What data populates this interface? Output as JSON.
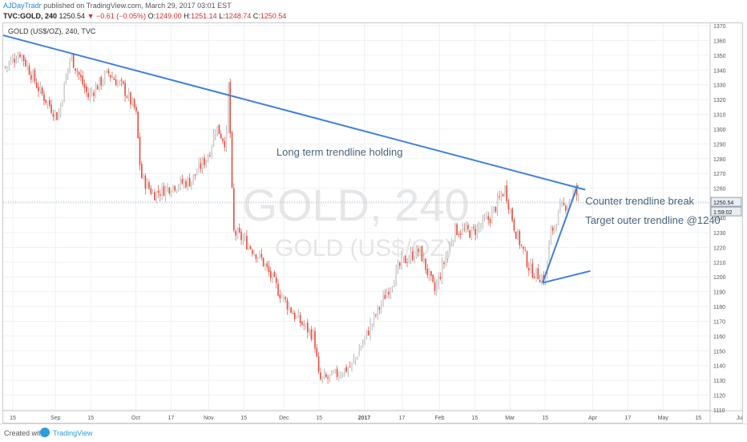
{
  "header": {
    "author": "AJDayTradr",
    "publish_text": "published on TradingView.com, March 29, 2017 03:01 EST",
    "symbol_line": "TVC:GOLD, 240",
    "last": "1250.54",
    "change": "▼ −0.61 (−0.05%)",
    "ohlc": [
      {
        "k": "O:",
        "v": "1249.00"
      },
      {
        "k": "H:",
        "v": "1251.14"
      },
      {
        "k": "L:",
        "v": "1248.74"
      },
      {
        "k": "C:",
        "v": "1250.54"
      }
    ]
  },
  "footer": {
    "created_with": "Created with",
    "brand": "TradingView"
  },
  "colors": {
    "up": "#cfcfcf",
    "down": "#e74c3c",
    "trendline": "#3f7fdc",
    "annotation_text": "#4a6479",
    "watermark": "#e6e6e6"
  },
  "chart_data": {
    "type": "candlestick",
    "chart_label": "GOLD (US$/OZ), 240, TVC",
    "watermark_symbol": "GOLD, 240",
    "watermark_name": "GOLD (US$/OZ)",
    "ylim": [
      1110,
      1370
    ],
    "y_ticks": [
      1110,
      1120,
      1130,
      1140,
      1150,
      1160,
      1170,
      1180,
      1190,
      1200,
      1210,
      1220,
      1230,
      1240,
      1250,
      1260,
      1270,
      1280,
      1290,
      1300,
      1310,
      1320,
      1330,
      1340,
      1350,
      1360,
      1370
    ],
    "x_ticks": [
      "15",
      "Sep",
      "15",
      "Oct",
      "17",
      "Nov",
      "15",
      "Dec",
      "15",
      "2017",
      "17",
      "Feb",
      "15",
      "Mar",
      "15",
      "Apr",
      "17",
      "May",
      "15",
      "Jun"
    ],
    "last_price_label": "1250.54",
    "countdown_label": "1:59:02",
    "price_path": [
      {
        "date": "2016-08-12",
        "price": 1342
      },
      {
        "date": "2016-08-18",
        "price": 1352
      },
      {
        "date": "2016-08-26",
        "price": 1325
      },
      {
        "date": "2016-09-02",
        "price": 1308
      },
      {
        "date": "2016-09-07",
        "price": 1350
      },
      {
        "date": "2016-09-14",
        "price": 1322
      },
      {
        "date": "2016-09-22",
        "price": 1338
      },
      {
        "date": "2016-09-28",
        "price": 1328
      },
      {
        "date": "2016-10-03",
        "price": 1312
      },
      {
        "date": "2016-10-05",
        "price": 1268
      },
      {
        "date": "2016-10-10",
        "price": 1256
      },
      {
        "date": "2016-10-18",
        "price": 1262
      },
      {
        "date": "2016-10-25",
        "price": 1265
      },
      {
        "date": "2016-11-01",
        "price": 1283
      },
      {
        "date": "2016-11-04",
        "price": 1302
      },
      {
        "date": "2016-11-08",
        "price": 1290
      },
      {
        "date": "2016-11-09",
        "price": 1337
      },
      {
        "date": "2016-11-10",
        "price": 1268
      },
      {
        "date": "2016-11-11",
        "price": 1230
      },
      {
        "date": "2016-11-15",
        "price": 1225
      },
      {
        "date": "2016-11-22",
        "price": 1212
      },
      {
        "date": "2016-11-29",
        "price": 1190
      },
      {
        "date": "2016-12-06",
        "price": 1172
      },
      {
        "date": "2016-12-13",
        "price": 1160
      },
      {
        "date": "2016-12-15",
        "price": 1130
      },
      {
        "date": "2016-12-20",
        "price": 1132
      },
      {
        "date": "2016-12-28",
        "price": 1140
      },
      {
        "date": "2017-01-04",
        "price": 1165
      },
      {
        "date": "2017-01-11",
        "price": 1190
      },
      {
        "date": "2017-01-17",
        "price": 1210
      },
      {
        "date": "2017-01-24",
        "price": 1218
      },
      {
        "date": "2017-01-30",
        "price": 1190
      },
      {
        "date": "2017-02-07",
        "price": 1232
      },
      {
        "date": "2017-02-14",
        "price": 1230
      },
      {
        "date": "2017-02-21",
        "price": 1240
      },
      {
        "date": "2017-02-27",
        "price": 1260
      },
      {
        "date": "2017-03-03",
        "price": 1232
      },
      {
        "date": "2017-03-09",
        "price": 1205
      },
      {
        "date": "2017-03-15",
        "price": 1198
      },
      {
        "date": "2017-03-17",
        "price": 1228
      },
      {
        "date": "2017-03-21",
        "price": 1245
      },
      {
        "date": "2017-03-24",
        "price": 1250
      },
      {
        "date": "2017-03-27",
        "price": 1258
      },
      {
        "date": "2017-03-29",
        "price": 1250.54
      }
    ],
    "trendlines": [
      {
        "name": "long-term-trendline",
        "points": [
          {
            "date": "2016-08-10",
            "price": 1364
          },
          {
            "date": "2017-03-31",
            "price": 1259
          }
        ]
      },
      {
        "name": "counter-trendline",
        "points": [
          {
            "date": "2017-03-14",
            "price": 1196
          },
          {
            "date": "2017-03-28",
            "price": 1262
          }
        ]
      },
      {
        "name": "outer-trendline",
        "points": [
          {
            "date": "2017-03-14",
            "price": 1196
          },
          {
            "date": "2017-04-02",
            "price": 1204
          }
        ]
      }
    ],
    "annotations": [
      {
        "name": "annotation-long-term",
        "text": "Long term trendline holding",
        "date": "2016-11-28",
        "price": 1282
      },
      {
        "name": "annotation-counter-break",
        "text": "Counter trendline break",
        "date": "2017-03-31",
        "price": 1249
      },
      {
        "name": "annotation-target",
        "text": "Target outer trendline @1240",
        "date": "2017-03-31",
        "price": 1236
      }
    ]
  }
}
